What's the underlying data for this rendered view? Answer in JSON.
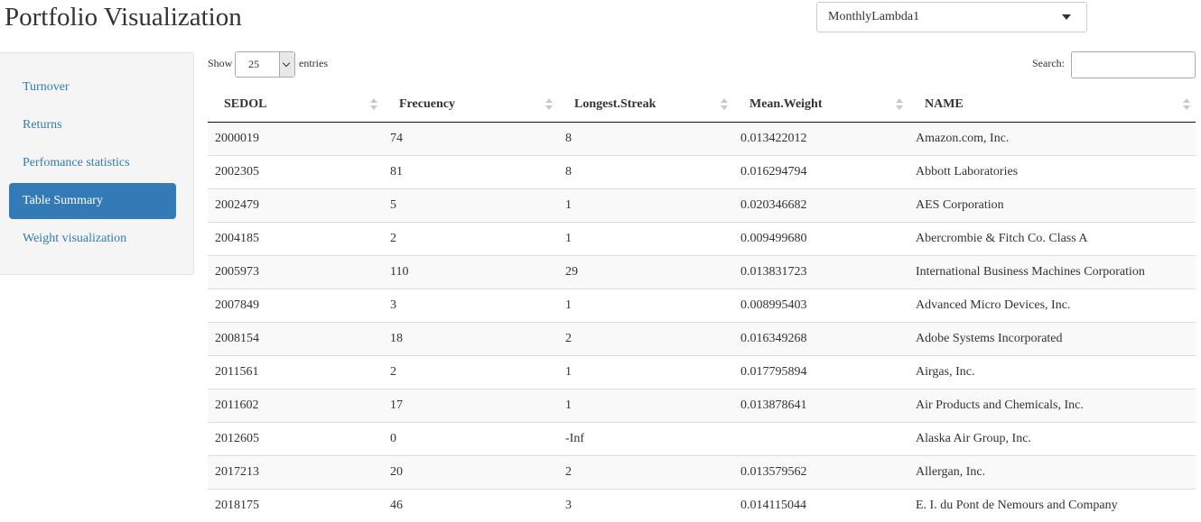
{
  "header": {
    "title": "Portfolio Visualization",
    "dataset_select": {
      "selected": "MonthlyLambda1"
    }
  },
  "sidebar": {
    "items": [
      {
        "label": "Turnover",
        "active": false
      },
      {
        "label": "Returns",
        "active": false
      },
      {
        "label": "Perfomance statistics",
        "active": false
      },
      {
        "label": "Table Summary",
        "active": true
      },
      {
        "label": "Weight visualization",
        "active": false
      }
    ]
  },
  "table_controls": {
    "show_label": "Show",
    "entries_value": "25",
    "entries_label": "entries",
    "search_label": "Search:",
    "search_value": ""
  },
  "table": {
    "columns": [
      "SEDOL",
      "Frecuency",
      "Longest.Streak",
      "Mean.Weight",
      "NAME"
    ],
    "rows": [
      [
        "2000019",
        "74",
        "8",
        "0.013422012",
        "Amazon.com, Inc."
      ],
      [
        "2002305",
        "81",
        "8",
        "0.016294794",
        "Abbott Laboratories"
      ],
      [
        "2002479",
        "5",
        "1",
        "0.020346682",
        "AES Corporation"
      ],
      [
        "2004185",
        "2",
        "1",
        "0.009499680",
        "Abercrombie & Fitch Co. Class A"
      ],
      [
        "2005973",
        "110",
        "29",
        "0.013831723",
        "International Business Machines Corporation"
      ],
      [
        "2007849",
        "3",
        "1",
        "0.008995403",
        "Advanced Micro Devices, Inc."
      ],
      [
        "2008154",
        "18",
        "2",
        "0.016349268",
        "Adobe Systems Incorporated"
      ],
      [
        "2011561",
        "2",
        "1",
        "0.017795894",
        "Airgas, Inc."
      ],
      [
        "2011602",
        "17",
        "1",
        "0.013878641",
        "Air Products and Chemicals, Inc."
      ],
      [
        "2012605",
        "0",
        "-Inf",
        "",
        "Alaska Air Group, Inc."
      ],
      [
        "2017213",
        "20",
        "2",
        "0.013579562",
        "Allergan, Inc."
      ],
      [
        "2018175",
        "46",
        "3",
        "0.014115044",
        "E. I. du Pont de Nemours and Company"
      ]
    ]
  },
  "colors": {
    "accent": "#337ab7",
    "sidebar_bg": "#f5f5f5",
    "stripe": "#f9f9f9"
  }
}
